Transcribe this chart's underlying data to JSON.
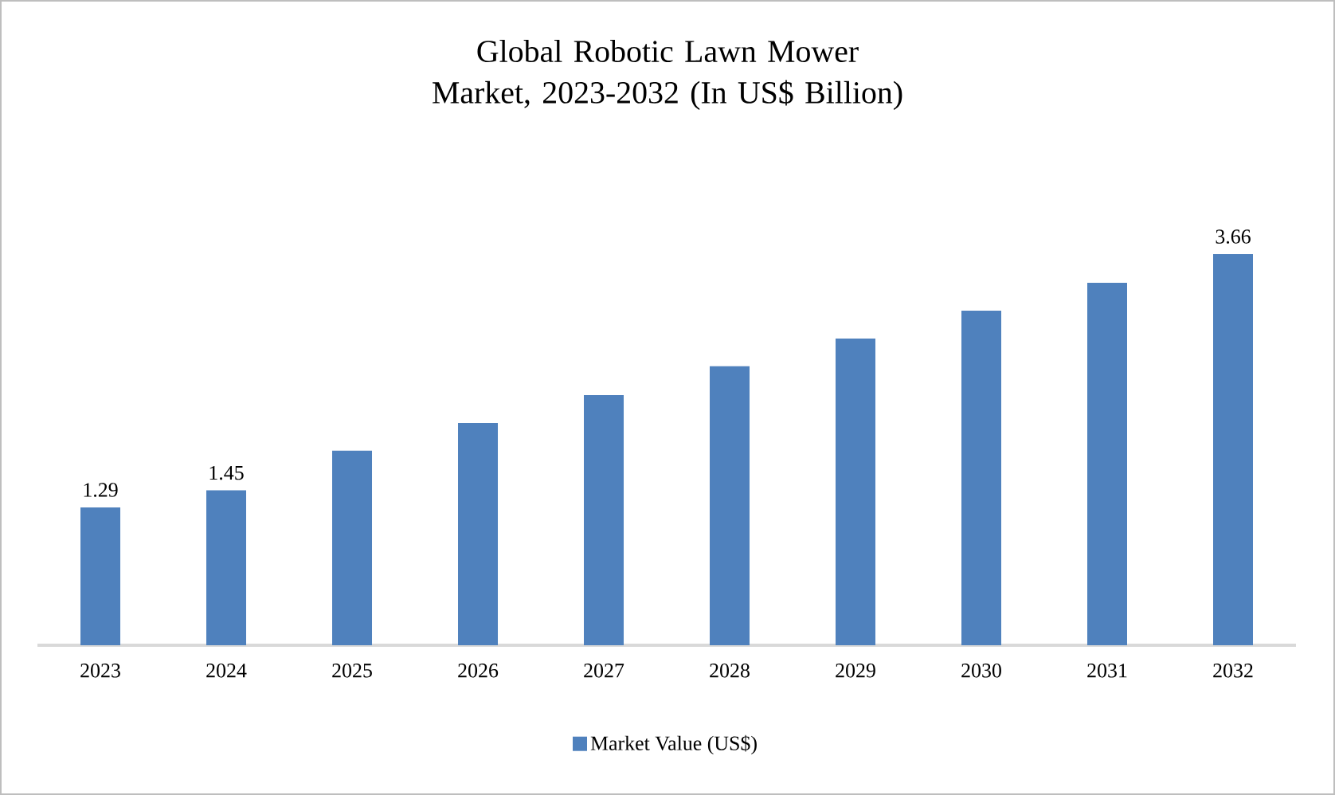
{
  "chart_data": {
    "type": "bar",
    "title": "Global Robotic Lawn Mower Market, 2023-2032 (In US$ Billion)",
    "categories": [
      "2023",
      "2024",
      "2025",
      "2026",
      "2027",
      "2028",
      "2029",
      "2030",
      "2031",
      "2032"
    ],
    "series": [
      {
        "name": "Market Value (US$)",
        "color": "#4f81bd",
        "values": [
          1.29,
          1.45,
          1.82,
          2.08,
          2.34,
          2.61,
          2.87,
          3.13,
          3.39,
          3.66
        ],
        "value_labels": [
          "1.29",
          "1.45",
          null,
          null,
          null,
          null,
          null,
          null,
          null,
          "3.66"
        ]
      }
    ],
    "tick_labels": "x",
    "legend": "bottom",
    "grid": false
  }
}
